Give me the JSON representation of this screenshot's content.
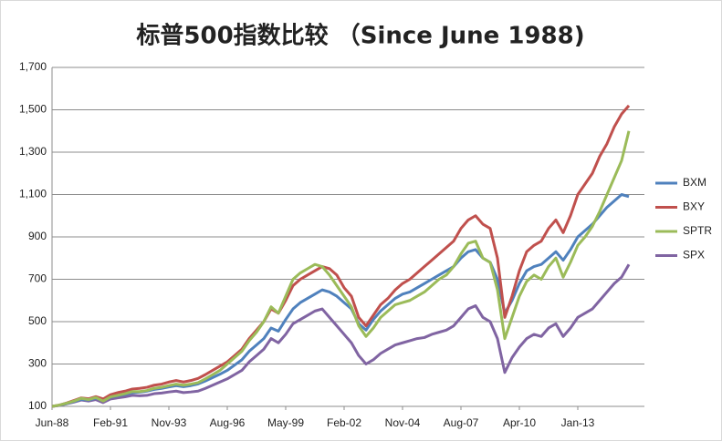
{
  "chart_data": {
    "type": "line",
    "title": "标普500指数比较 （Since June 1988)",
    "categories": [
      "Jun-88",
      null,
      null,
      null,
      null,
      null,
      null,
      null,
      "Feb-91",
      null,
      null,
      null,
      null,
      null,
      null,
      null,
      "Nov-93",
      null,
      null,
      null,
      null,
      null,
      null,
      null,
      "Aug-96",
      null,
      null,
      null,
      null,
      null,
      null,
      null,
      "May-99",
      null,
      null,
      null,
      null,
      null,
      null,
      null,
      "Feb-02",
      null,
      null,
      null,
      null,
      null,
      null,
      null,
      "Nov-04",
      null,
      null,
      null,
      null,
      null,
      null,
      null,
      "Aug-07",
      null,
      null,
      null,
      null,
      null,
      null,
      null,
      "Apr-10",
      null,
      null,
      null,
      null,
      null,
      null,
      null,
      "Jan-13",
      null,
      null,
      null,
      null,
      null,
      null,
      null
    ],
    "ylim": [
      100,
      1700
    ],
    "yticks": [
      100,
      300,
      500,
      700,
      900,
      {
        "value": 1100,
        "label": "1,100"
      },
      {
        "value": 1300,
        "label": "1,300"
      },
      {
        "value": 1500,
        "label": "1,500"
      },
      {
        "value": 1700,
        "label": "1,700"
      }
    ],
    "grid": true,
    "legend": "right",
    "series": [
      {
        "name": "BXM",
        "color": "#4f81bd",
        "values": [
          100,
          105,
          113,
          123,
          133,
          130,
          138,
          128,
          143,
          150,
          157,
          165,
          167,
          172,
          180,
          185,
          192,
          198,
          193,
          198,
          206,
          220,
          236,
          252,
          270,
          295,
          320,
          360,
          390,
          420,
          470,
          455,
          510,
          560,
          590,
          610,
          630,
          650,
          640,
          620,
          590,
          560,
          490,
          460,
          510,
          550,
          580,
          610,
          630,
          640,
          660,
          680,
          700,
          720,
          740,
          760,
          800,
          830,
          840,
          800,
          780,
          700,
          540,
          600,
          680,
          740,
          760,
          770,
          800,
          830,
          790,
          840,
          900,
          930,
          960,
          1000,
          1040,
          1070,
          1100,
          1090
        ]
      },
      {
        "name": "BXY",
        "color": "#c0504d",
        "values": [
          100,
          106,
          116,
          128,
          140,
          136,
          146,
          135,
          155,
          165,
          172,
          182,
          185,
          190,
          200,
          205,
          215,
          222,
          215,
          222,
          232,
          250,
          270,
          290,
          310,
          340,
          370,
          420,
          460,
          500,
          560,
          540,
          600,
          670,
          700,
          720,
          740,
          760,
          750,
          720,
          660,
          620,
          520,
          480,
          530,
          580,
          610,
          650,
          680,
          700,
          730,
          760,
          790,
          820,
          850,
          880,
          940,
          980,
          1000,
          960,
          940,
          800,
          520,
          620,
          740,
          830,
          860,
          880,
          940,
          980,
          920,
          1000,
          1100,
          1150,
          1200,
          1280,
          1340,
          1420,
          1480,
          1520
        ]
      },
      {
        "name": "SPTR",
        "color": "#9bbb59",
        "values": [
          100,
          106,
          115,
          125,
          138,
          132,
          142,
          125,
          145,
          152,
          160,
          170,
          170,
          175,
          185,
          190,
          198,
          205,
          200,
          205,
          212,
          230,
          250,
          270,
          300,
          330,
          360,
          410,
          450,
          500,
          570,
          540,
          620,
          700,
          730,
          750,
          770,
          760,
          720,
          670,
          620,
          570,
          480,
          430,
          470,
          520,
          550,
          580,
          590,
          600,
          620,
          640,
          670,
          700,
          720,
          760,
          820,
          870,
          880,
          800,
          780,
          650,
          420,
          520,
          620,
          690,
          720,
          700,
          760,
          800,
          710,
          780,
          860,
          900,
          950,
          1020,
          1100,
          1180,
          1260,
          1400
        ]
      },
      {
        "name": "SPX",
        "color": "#8064a2",
        "values": [
          100,
          104,
          112,
          120,
          130,
          125,
          132,
          118,
          135,
          140,
          145,
          152,
          150,
          152,
          160,
          163,
          168,
          172,
          165,
          168,
          172,
          185,
          200,
          215,
          230,
          250,
          270,
          310,
          340,
          370,
          420,
          400,
          440,
          490,
          510,
          530,
          550,
          560,
          520,
          480,
          440,
          400,
          340,
          300,
          320,
          350,
          370,
          390,
          400,
          410,
          420,
          425,
          440,
          450,
          460,
          480,
          520,
          560,
          575,
          520,
          500,
          420,
          260,
          330,
          380,
          420,
          440,
          430,
          470,
          490,
          430,
          470,
          520,
          540,
          560,
          600,
          640,
          680,
          710,
          770
        ]
      }
    ]
  }
}
